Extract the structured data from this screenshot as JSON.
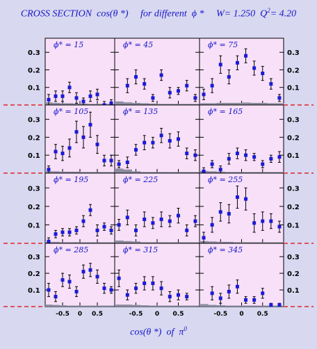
{
  "title": {
    "part1": "CROSS SECTION  cos(θ *)     for different  ϕ *",
    "part2": "W= 1.250  Q",
    "q2_exp": "2",
    "part3": "= 4.20"
  },
  "xcaption": {
    "text": "cos(θ *)  of  π",
    "exp": "0"
  },
  "chart_data": {
    "type": "scatter",
    "layout": "grid 4 rows x 3 columns of panels",
    "title": "CROSS SECTION  cos(θ *)  for different  ϕ *   W= 1.250  Q2= 4.20",
    "xlabel": "cos(θ *) of π0",
    "ylim": [
      0,
      0.38
    ],
    "yticks": [
      "0.1",
      "0.2",
      "0.3"
    ],
    "xticks": [
      "-0.5",
      "0",
      "0.5"
    ],
    "xlim": [
      -1,
      1
    ],
    "x_points": [
      -0.9,
      -0.7,
      -0.5,
      -0.3,
      -0.1,
      0.1,
      0.3,
      0.5,
      0.7,
      0.9
    ],
    "panel_labels": [
      "ϕ* = 15",
      "ϕ* = 45",
      "ϕ* = 75",
      "ϕ* = 105",
      "ϕ* = 135",
      "ϕ* = 165",
      "ϕ* = 195",
      "ϕ* = 225",
      "ϕ* = 255",
      "ϕ* = 285",
      "ϕ* = 315",
      "ϕ* = 345"
    ],
    "panels": [
      {
        "phi": 15,
        "y": [
          0.03,
          0.05,
          0.05,
          0.1,
          0.04,
          0.02,
          0.05,
          0.06,
          0.0,
          0.01
        ],
        "err": [
          0.03,
          0.03,
          0.03,
          0.03,
          0.03,
          0.02,
          0.03,
          0.03,
          0.02,
          0.02
        ]
      },
      {
        "phi": 45,
        "y": [
          null,
          0.11,
          0.16,
          0.12,
          0.04,
          0.17,
          0.07,
          0.08,
          0.11,
          0.04
        ],
        "err": [
          null,
          0.04,
          0.04,
          0.03,
          0.02,
          0.03,
          0.03,
          0.02,
          0.03,
          0.02
        ]
      },
      {
        "phi": 75,
        "y": [
          0.06,
          0.11,
          0.23,
          0.16,
          0.24,
          0.28,
          0.21,
          0.18,
          0.12,
          0.04
        ],
        "err": [
          0.03,
          0.04,
          0.05,
          0.04,
          0.04,
          0.04,
          0.04,
          0.04,
          0.03,
          0.02
        ]
      },
      {
        "phi": 105,
        "y": [
          0.02,
          0.12,
          0.11,
          0.14,
          0.23,
          0.2,
          0.27,
          0.16,
          0.07,
          0.07
        ],
        "err": [
          0.02,
          0.04,
          0.04,
          0.05,
          0.06,
          0.06,
          0.07,
          0.05,
          0.03,
          0.03
        ]
      },
      {
        "phi": 135,
        "y": [
          0.05,
          0.06,
          0.13,
          0.17,
          0.17,
          0.21,
          0.18,
          0.19,
          0.11,
          0.1
        ],
        "err": [
          0.02,
          0.03,
          0.03,
          0.04,
          0.03,
          0.04,
          0.04,
          0.04,
          0.03,
          0.03
        ]
      },
      {
        "phi": 165,
        "y": [
          0.01,
          0.05,
          0.02,
          0.08,
          0.11,
          0.1,
          0.09,
          0.05,
          0.08,
          0.09
        ],
        "err": [
          0.02,
          0.02,
          0.02,
          0.03,
          0.03,
          0.03,
          0.02,
          0.02,
          0.02,
          0.03
        ]
      },
      {
        "phi": 195,
        "y": [
          0.01,
          0.05,
          0.06,
          0.06,
          0.07,
          0.12,
          0.18,
          0.07,
          0.09,
          0.07
        ],
        "err": [
          0.02,
          0.02,
          0.02,
          0.02,
          0.02,
          0.03,
          0.03,
          0.03,
          0.02,
          0.02
        ]
      },
      {
        "phi": 225,
        "y": [
          0.1,
          0.14,
          0.07,
          0.13,
          0.11,
          0.13,
          0.12,
          0.15,
          0.07,
          0.12
        ],
        "err": [
          0.03,
          0.04,
          0.03,
          0.04,
          0.03,
          0.04,
          0.03,
          0.04,
          0.03,
          0.03
        ]
      },
      {
        "phi": 255,
        "y": [
          0.03,
          0.1,
          0.17,
          0.16,
          0.25,
          0.24,
          0.11,
          0.12,
          0.12,
          0.09
        ],
        "err": [
          0.03,
          0.04,
          0.05,
          0.05,
          0.06,
          0.06,
          0.05,
          0.05,
          0.04,
          0.03
        ]
      },
      {
        "phi": 285,
        "y": [
          0.1,
          0.06,
          0.16,
          0.15,
          0.09,
          0.21,
          0.22,
          0.18,
          0.11,
          0.1
        ],
        "err": [
          0.04,
          0.03,
          0.04,
          0.04,
          0.03,
          0.04,
          0.04,
          0.04,
          0.03,
          0.02
        ]
      },
      {
        "phi": 315,
        "y": [
          0.17,
          0.07,
          0.11,
          0.14,
          0.14,
          0.11,
          0.06,
          0.07,
          0.06,
          null
        ],
        "err": [
          0.05,
          0.03,
          0.03,
          0.04,
          0.04,
          0.04,
          0.03,
          0.03,
          0.02,
          null
        ]
      },
      {
        "phi": 345,
        "y": [
          null,
          0.08,
          0.05,
          0.09,
          0.12,
          0.04,
          0.04,
          0.08,
          0.01,
          0.01
        ],
        "err": [
          null,
          0.04,
          0.03,
          0.04,
          0.04,
          0.02,
          0.02,
          0.03,
          0.01,
          0.01
        ]
      }
    ],
    "background_bands": [
      [
        0.015,
        0.012,
        0.01,
        0.01,
        0.008,
        0.008,
        0.006,
        0.006,
        0.005,
        0.005
      ],
      [
        0.02,
        0.015,
        0.012,
        0.01,
        0.008,
        0.006,
        0.006,
        0.005,
        0.004,
        0.004
      ],
      [
        0.01,
        0.01,
        0.012,
        0.012,
        0.012,
        0.014,
        0.012,
        0.012,
        0.01,
        0.01
      ],
      [
        0.01,
        0.01,
        0.008,
        0.008,
        0.008,
        0.006,
        0.006,
        0.006,
        0.005,
        0.005
      ],
      [
        0.025,
        0.02,
        0.01,
        0.006,
        0.006,
        0.006,
        0.005,
        0.005,
        0.004,
        0.004
      ],
      [
        0.012,
        0.01,
        0.008,
        0.006,
        0.006,
        0.005,
        0.005,
        0.004,
        0.004,
        0.004
      ],
      [
        0.008,
        0.008,
        0.006,
        0.006,
        0.006,
        0.005,
        0.005,
        0.005,
        0.004,
        0.004
      ],
      [
        0.015,
        0.012,
        0.01,
        0.006,
        0.006,
        0.006,
        0.005,
        0.005,
        0.004,
        0.004
      ],
      [
        0.012,
        0.01,
        0.008,
        0.008,
        0.006,
        0.006,
        0.006,
        0.005,
        0.004,
        0.004
      ],
      [
        0.012,
        0.01,
        0.008,
        0.006,
        0.006,
        0.006,
        0.005,
        0.005,
        0.004,
        0.004
      ],
      [
        0.012,
        0.012,
        0.01,
        0.008,
        0.006,
        0.006,
        0.005,
        0.005,
        0.004,
        0.004
      ],
      [
        0.015,
        0.01,
        0.008,
        0.006,
        0.006,
        0.005,
        0.005,
        0.004,
        0.004,
        0.004
      ]
    ],
    "colors": {
      "page_bg": "#d8d8f0",
      "panel_bg": "#f8e0f8",
      "marker": "#1a1ad8",
      "error_bar": "#000000",
      "band": "#8c8ca0",
      "dash_line": "#e00000",
      "text": "#1616c8"
    }
  }
}
